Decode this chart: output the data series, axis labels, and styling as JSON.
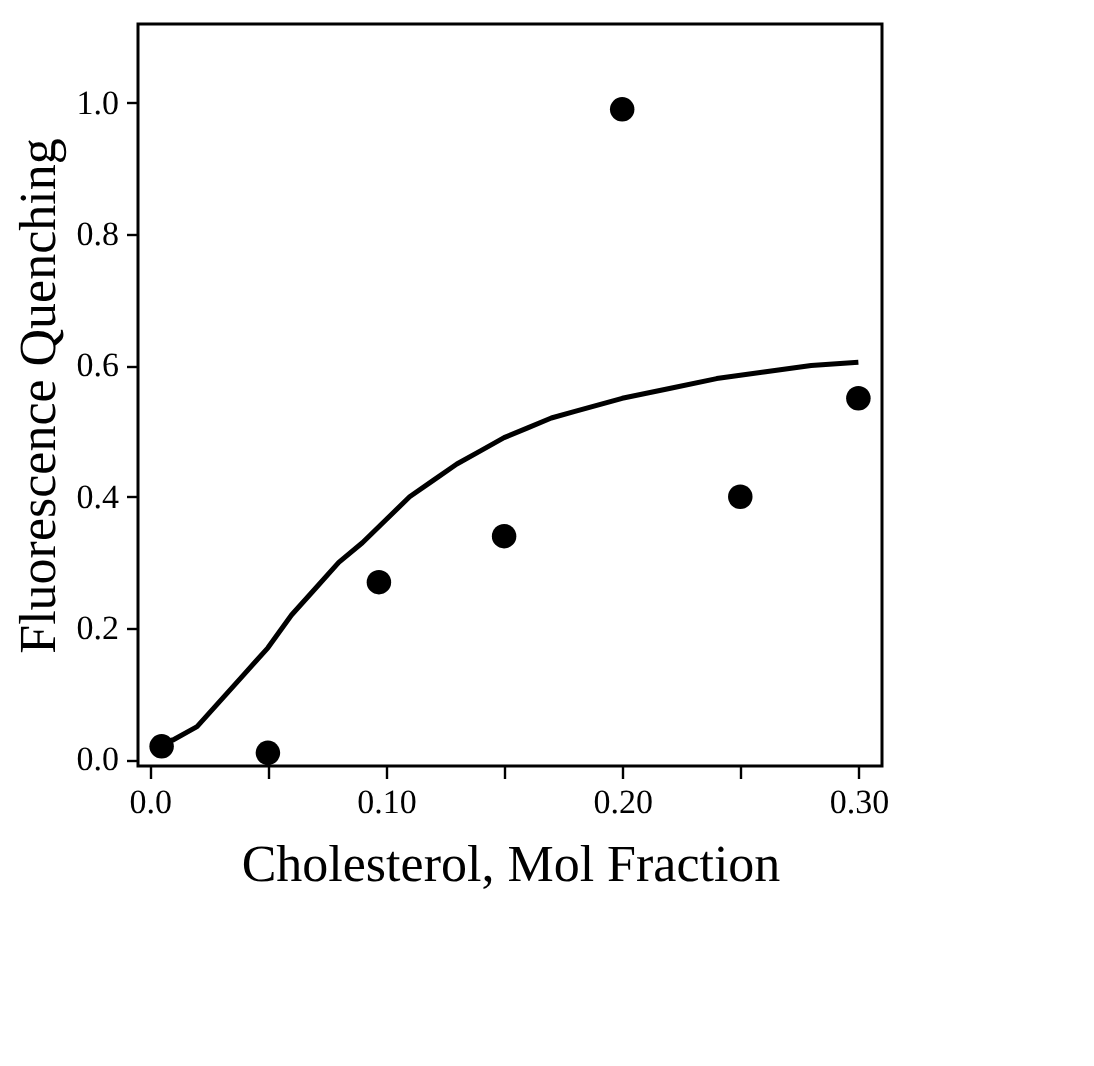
{
  "chart_data": {
    "type": "scatter",
    "xlabel": "Cholesterol, Mol Fraction",
    "ylabel": "Fluorescence Quenching",
    "xlim": [
      -0.005,
      0.31
    ],
    "ylim": [
      -0.01,
      1.12
    ],
    "xticks": [
      {
        "value": 0,
        "label": "0.0"
      },
      {
        "value": 0.05,
        "label": null
      },
      {
        "value": 0.1,
        "label": "0.10"
      },
      {
        "value": 0.15,
        "label": null
      },
      {
        "value": 0.2,
        "label": "0.20"
      },
      {
        "value": 0.25,
        "label": null
      },
      {
        "value": 0.3,
        "label": "0.30"
      }
    ],
    "yticks": [
      {
        "value": 0,
        "label": "0.0"
      },
      {
        "value": 0.2,
        "label": "0.2"
      },
      {
        "value": 0.4,
        "label": "0.4"
      },
      {
        "value": 0.6,
        "label": "0.6"
      },
      {
        "value": 0.8,
        "label": "0.8"
      },
      {
        "value": 1.0,
        "label": "1.0"
      }
    ],
    "grid": false,
    "series": [
      {
        "color": "#000000",
        "marker": "circle",
        "x": [
          0.005,
          0.05,
          0.097,
          0.15,
          0.2,
          0.25,
          0.3
        ],
        "values": [
          0.02,
          0.01,
          0.27,
          0.34,
          0.99,
          0.4,
          0.55
        ]
      },
      {
        "type": "line",
        "color": "#000000",
        "line_style": "solid",
        "x": [
          0.005,
          0.01,
          0.02,
          0.03,
          0.04,
          0.05,
          0.06,
          0.07,
          0.08,
          0.09,
          0.1,
          0.11,
          0.12,
          0.13,
          0.14,
          0.15,
          0.16,
          0.17,
          0.18,
          0.2,
          0.22,
          0.24,
          0.26,
          0.28,
          0.3
        ],
        "values": [
          0.025,
          0.03,
          0.05,
          0.09,
          0.13,
          0.17,
          0.22,
          0.26,
          0.3,
          0.33,
          0.365,
          0.4,
          0.425,
          0.45,
          0.47,
          0.49,
          0.505,
          0.52,
          0.53,
          0.55,
          0.565,
          0.58,
          0.59,
          0.6,
          0.605
        ]
      }
    ]
  }
}
